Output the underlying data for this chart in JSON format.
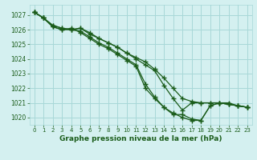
{
  "bg_color": "#d4f0f0",
  "grid_color": "#a8d8d8",
  "line_color": "#1a5c1a",
  "title": "Graphe pression niveau de la mer (hPa)",
  "xlim": [
    -0.5,
    23.5
  ],
  "ylim": [
    1019.5,
    1027.7
  ],
  "yticks": [
    1020,
    1021,
    1022,
    1023,
    1024,
    1025,
    1026,
    1027
  ],
  "xticks": [
    0,
    1,
    2,
    3,
    4,
    5,
    6,
    7,
    8,
    9,
    10,
    11,
    12,
    13,
    14,
    15,
    16,
    17,
    18,
    19,
    20,
    21,
    22,
    23
  ],
  "series": [
    [
      1027.2,
      1026.8,
      1026.3,
      1026.1,
      1026.0,
      1026.1,
      1025.7,
      1025.4,
      1025.1,
      1024.8,
      1024.4,
      1024.1,
      1023.8,
      1023.3,
      1022.7,
      1022.0,
      1021.3,
      1021.1,
      1021.0,
      1021.0,
      1021.0,
      1020.9,
      1020.8,
      1020.7
    ],
    [
      1027.2,
      1026.8,
      1026.3,
      1026.1,
      1026.0,
      1026.1,
      1025.8,
      1025.4,
      1025.1,
      1024.8,
      1024.4,
      1024.0,
      1023.6,
      1023.2,
      1022.2,
      1021.3,
      1020.5,
      1021.0,
      1021.0,
      1021.0,
      1021.0,
      1020.9,
      1020.8,
      1020.7
    ],
    [
      1027.2,
      1026.8,
      1026.2,
      1026.0,
      1026.0,
      1025.9,
      1025.5,
      1025.1,
      1024.8,
      1024.4,
      1024.0,
      1023.6,
      1022.3,
      1021.4,
      1020.7,
      1020.2,
      1020.2,
      1019.9,
      1019.8,
      1020.8,
      1021.0,
      1020.9,
      1020.8,
      1020.7
    ],
    [
      1027.2,
      1026.8,
      1026.2,
      1026.0,
      1026.1,
      1025.8,
      1025.4,
      1025.0,
      1024.7,
      1024.3,
      1023.9,
      1023.5,
      1022.0,
      1021.3,
      1020.7,
      1020.3,
      1020.0,
      1019.8,
      1019.8,
      1020.8,
      1021.0,
      1021.0,
      1020.8,
      1020.7
    ]
  ]
}
